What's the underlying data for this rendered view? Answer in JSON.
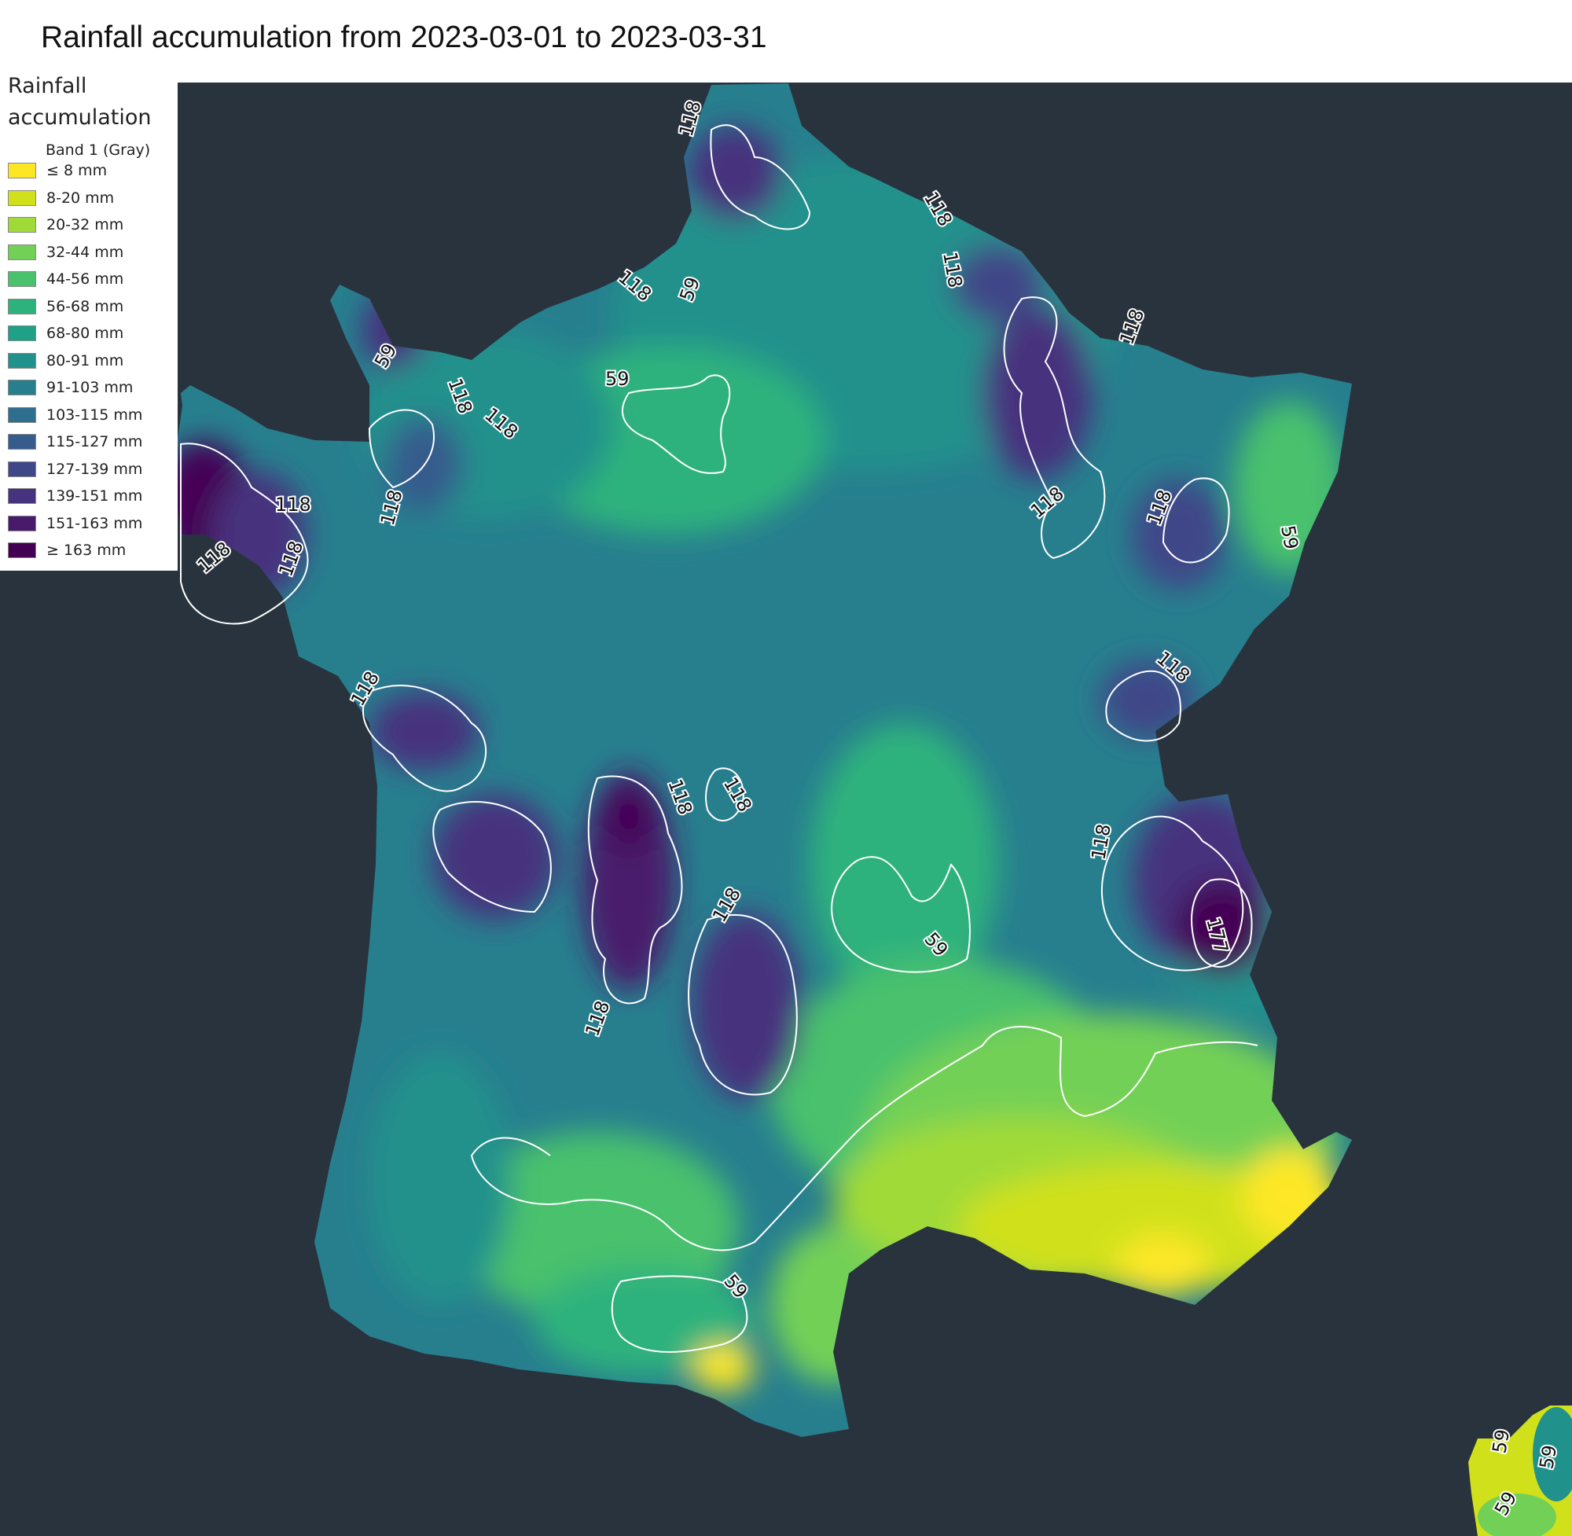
{
  "title": "Rainfall accumulation from 2023-03-01 to 2023-03-31",
  "colors": {
    "background": "#29333e",
    "contour_line": "#ffffff"
  },
  "legend": {
    "title_line1": "Rainfall",
    "title_line2": "accumulation",
    "band": "Band 1 (Gray)",
    "items": [
      {
        "label": "≤ 8 mm",
        "color": "#fde725"
      },
      {
        "label": "8-20 mm",
        "color": "#d0e11c"
      },
      {
        "label": "20-32 mm",
        "color": "#a0da39"
      },
      {
        "label": "32-44 mm",
        "color": "#73d056"
      },
      {
        "label": "44-56 mm",
        "color": "#4ac16d"
      },
      {
        "label": "56-68 mm",
        "color": "#2db27d"
      },
      {
        "label": "68-80 mm",
        "color": "#1fa187"
      },
      {
        "label": "80-91 mm",
        "color": "#21918c"
      },
      {
        "label": "91-103 mm",
        "color": "#277f8e"
      },
      {
        "label": "103-115 mm",
        "color": "#2e6e8e"
      },
      {
        "label": "115-127 mm",
        "color": "#365c8d"
      },
      {
        "label": "127-139 mm",
        "color": "#3f4788"
      },
      {
        "label": "139-151 mm",
        "color": "#46327e"
      },
      {
        "label": "151-163 mm",
        "color": "#481a6c"
      },
      {
        "label": "≥ 163 mm",
        "color": "#440154"
      }
    ]
  },
  "contour_labels": {
    "c59": "59",
    "c118": "118",
    "c177": "177"
  }
}
